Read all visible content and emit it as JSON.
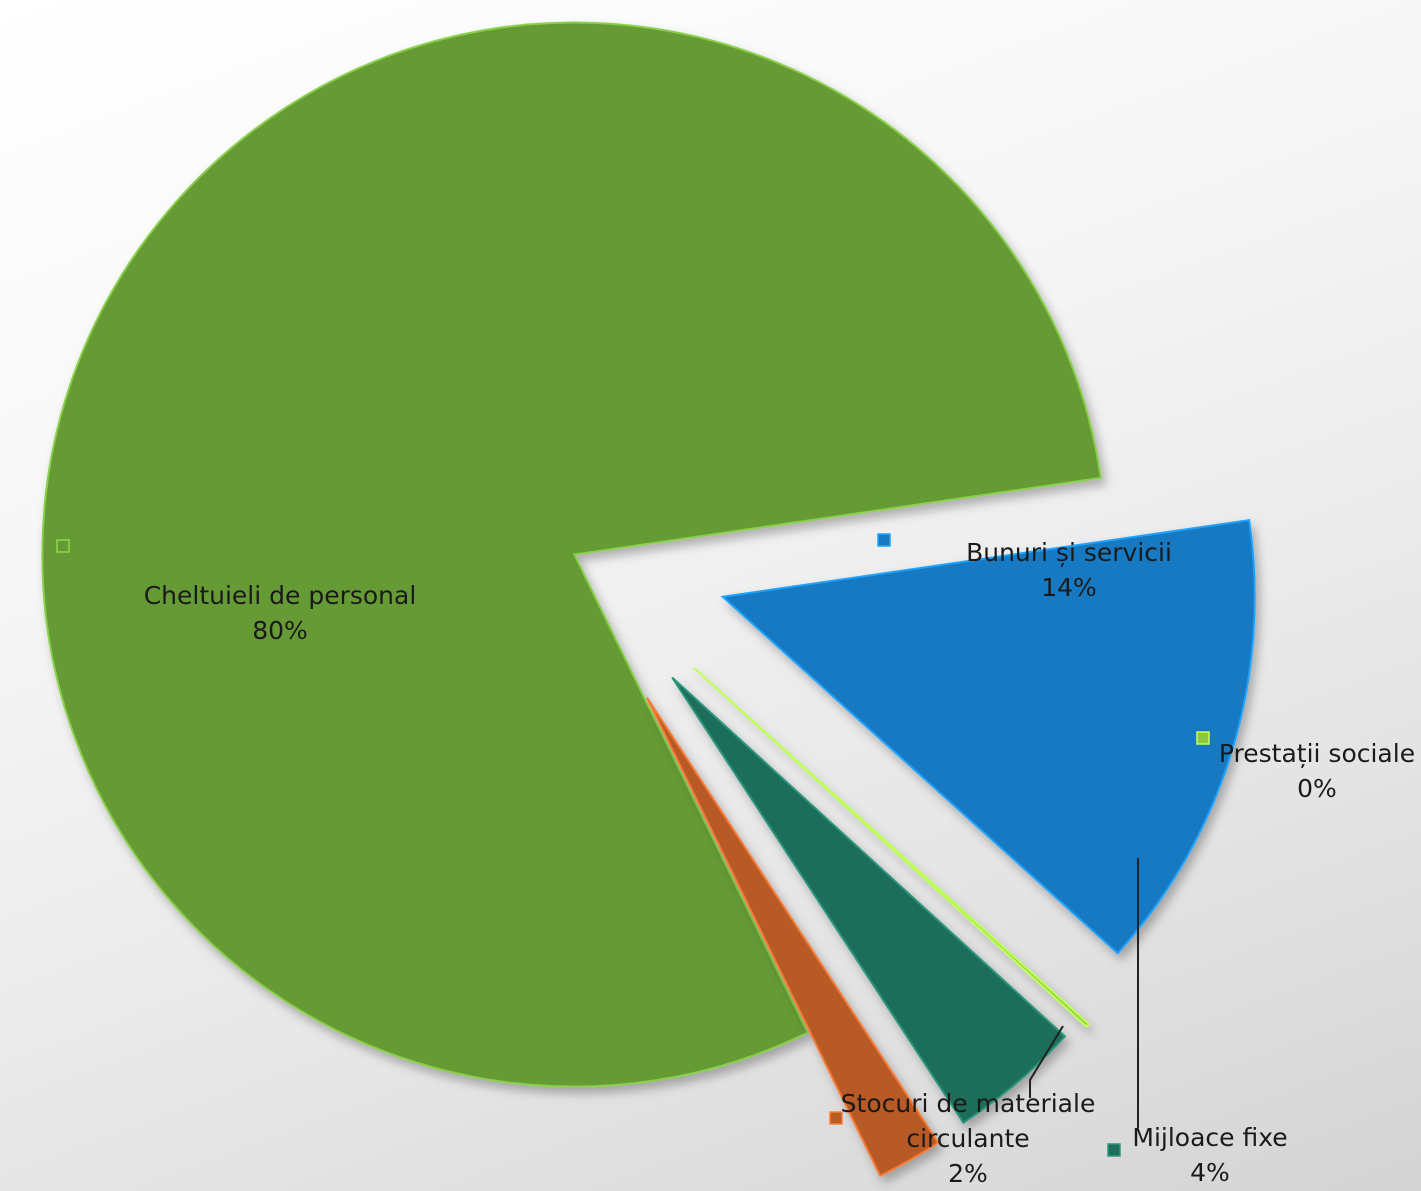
{
  "chart_data": {
    "type": "pie",
    "title": "",
    "slices": [
      {
        "label": "Cheltuieli de personal",
        "value": 80,
        "percent_label": "80%",
        "color": "#659a36"
      },
      {
        "label": "Bunuri și servicii",
        "value": 14,
        "percent_label": "14%",
        "color": "#1679c2"
      },
      {
        "label": "Prestații sociale",
        "value": 0.1,
        "percent_label": "0%",
        "color": "#8dc63f"
      },
      {
        "label": "Mijloace fixe",
        "value": 4,
        "percent_label": "4%",
        "color": "#1e6e5a"
      },
      {
        "label": "Stocuri de materiale circulante",
        "value": 2,
        "percent_label": "2%",
        "color": "#b85a26"
      }
    ],
    "legend": "inline-labels",
    "exploded": true
  }
}
